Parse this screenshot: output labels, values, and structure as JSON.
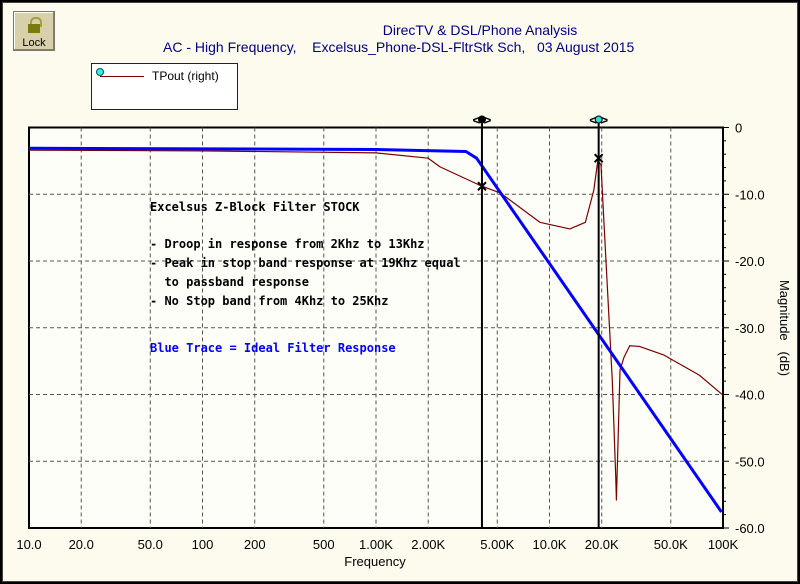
{
  "toolbar": {
    "lock_label": "Lock"
  },
  "header": {
    "title": "DirecTV & DSL/Phone Analysis",
    "subtitle": "AC - High Frequency,    Excelsus_Phone-DSL-FltrStk Sch,   03 August 2015"
  },
  "legend": {
    "entries": [
      {
        "label": "TPout (right)",
        "color": "#7a0000"
      }
    ]
  },
  "annotations": {
    "heading": "Excelsus Z-Block Filter STOCK",
    "lines": [
      "- Droop in response from 2Khz to 13Khz",
      "- Peak in stop band response at 19Khz equal",
      "  to passband response",
      "- No Stop band from 4Khz to 25Khz"
    ],
    "blue_note": "Blue Trace = Ideal Filter Response"
  },
  "chart_data": {
    "type": "line",
    "xlabel": "Frequency",
    "ylabel": "Magnitude   (dB)",
    "xscale": "log",
    "xlim": [
      10,
      100000
    ],
    "ylim": [
      -60,
      0
    ],
    "y_axis_side": "right",
    "grid": true,
    "x_ticks": [
      {
        "v": 10,
        "label": "10.0"
      },
      {
        "v": 20,
        "label": "20.0"
      },
      {
        "v": 50,
        "label": "50.0"
      },
      {
        "v": 100,
        "label": "100"
      },
      {
        "v": 200,
        "label": "200"
      },
      {
        "v": 500,
        "label": "500"
      },
      {
        "v": 1000,
        "label": "1.00K"
      },
      {
        "v": 2000,
        "label": "2.00K"
      },
      {
        "v": 5000,
        "label": "5.00K"
      },
      {
        "v": 10000,
        "label": "10.0K"
      },
      {
        "v": 20000,
        "label": "20.0K"
      },
      {
        "v": 50000,
        "label": "50.0K"
      },
      {
        "v": 100000,
        "label": "100K"
      }
    ],
    "y_ticks": [
      {
        "v": 0,
        "label": "0"
      },
      {
        "v": -10,
        "label": "-10.0"
      },
      {
        "v": -20,
        "label": "-20.0"
      },
      {
        "v": -30,
        "label": "-30.0"
      },
      {
        "v": -40,
        "label": "-40.0"
      },
      {
        "v": -50,
        "label": "-50.0"
      },
      {
        "v": -60,
        "label": "-60.0"
      }
    ],
    "series": [
      {
        "name": "TPout (right)",
        "color": "#7a0000",
        "x": [
          10,
          100,
          1000,
          2000,
          2340,
          4080,
          5200,
          8800,
          13100,
          16100,
          18000,
          19000,
          19800,
          21300,
          23000,
          24100,
          24300,
          25500,
          26900,
          29000,
          33000,
          45700,
          73000,
          100000
        ],
        "y": [
          -3.4,
          -3.5,
          -3.8,
          -4.6,
          -5.9,
          -8.8,
          -9.8,
          -14.2,
          -15.2,
          -14.2,
          -9.4,
          -4.9,
          -5.6,
          -21.4,
          -37.8,
          -52.5,
          -55.8,
          -36.3,
          -34.4,
          -32.7,
          -32.8,
          -34.1,
          -37.1,
          -40.1
        ]
      },
      {
        "color": "#0000ff",
        "x": [
          10,
          1000,
          3300,
          3800,
          98000
        ],
        "y": [
          -3.1,
          -3.3,
          -3.6,
          -4.6,
          -57.6
        ]
      }
    ],
    "cursors": [
      {
        "x": 4080,
        "y": -8.8,
        "marker": "filled",
        "color": "#000000"
      },
      {
        "x": 19200,
        "y": -4.6,
        "marker": "cyan",
        "color": "#33dddd"
      }
    ]
  }
}
